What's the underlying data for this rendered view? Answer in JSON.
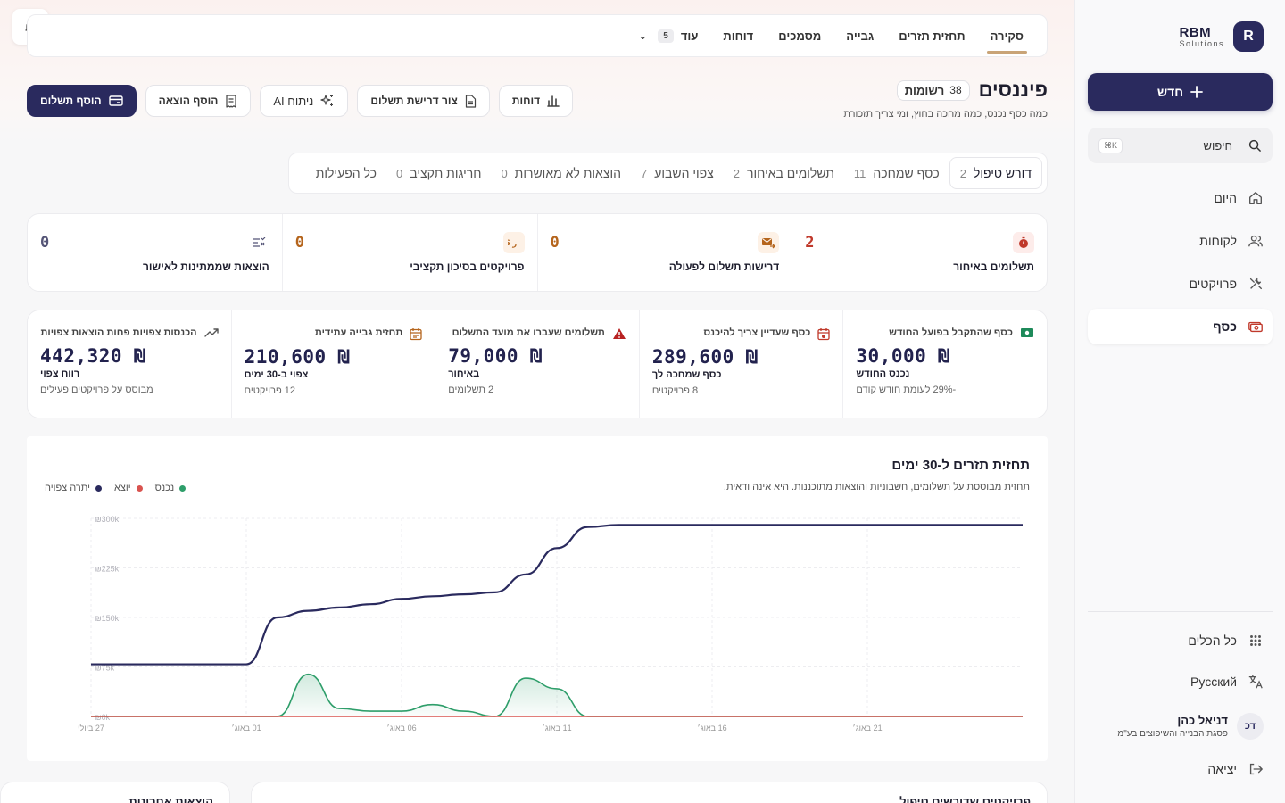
{
  "brand": {
    "logo_letter": "R",
    "name": "RBM",
    "sub": "Solutions"
  },
  "sidebar": {
    "new_label": "חדש",
    "search_label": "חיפוש",
    "search_shortcut": "⌘K",
    "items": [
      {
        "label": "היום",
        "icon": "home-icon"
      },
      {
        "label": "לקוחות",
        "icon": "users-icon"
      },
      {
        "label": "פרויקטים",
        "icon": "tools-icon"
      },
      {
        "label": "כסף",
        "icon": "money-icon"
      }
    ],
    "bottom": {
      "all_tools": "כל הכלים",
      "language": "Русский",
      "user_initials": "דכ",
      "user_name": "דניאל כהן",
      "user_company": "פסגת הבנייה והשיפוצים בע\"מ",
      "logout": "יציאה"
    }
  },
  "top_tabs": {
    "tabs": [
      "סקירה",
      "תחזית תזרים",
      "גבייה",
      "מסמכים",
      "דוחות"
    ],
    "more_label": "עוד",
    "more_count": "5"
  },
  "page": {
    "title": "פיננסים",
    "records_count": "38",
    "records_label": "רשומות",
    "subtitle": "כמה כסף נכנס, כמה מחכה בחוץ, ומי צריך תזכורת"
  },
  "actions": {
    "add_payment": "הוסף תשלום",
    "add_expense": "הוסף הוצאה",
    "ai_analysis": "ניתוח AI",
    "create_payment_request": "צור דרישת תשלום",
    "reports": "דוחות"
  },
  "filters": [
    {
      "label": "דורש טיפול",
      "count": "2"
    },
    {
      "label": "כסף שמחכה",
      "count": "11"
    },
    {
      "label": "תשלומים באיחור",
      "count": "2"
    },
    {
      "label": "צפוי השבוע",
      "count": "7"
    },
    {
      "label": "הוצאות לא מאושרות",
      "count": "0"
    },
    {
      "label": "חריגות תקציב",
      "count": "0"
    },
    {
      "label": "כל הפעילות",
      "count": ""
    }
  ],
  "alerts": [
    {
      "label": "תשלומים באיחור",
      "value": "2",
      "color": "#c0392b",
      "bg": "#fdecea"
    },
    {
      "label": "דרישות תשלום לפעולה",
      "value": "0",
      "color": "#b5651d",
      "bg": "#fdf1e6"
    },
    {
      "label": "פרויקטים בסיכון תקציבי",
      "value": "0",
      "color": "#b5651d",
      "bg": "#fdf1e6"
    },
    {
      "label": "הוצאות שממתינות לאישור",
      "value": "0",
      "color": "#555577",
      "bg": "#ffffff"
    }
  ],
  "kpis": [
    {
      "title": "כסף שהתקבל בפועל החודש",
      "value": "₪ 30,000",
      "caption": "נכנס החודש",
      "note": "-29% לעומת חודש קודם"
    },
    {
      "title": "כסף שעדיין צריך להיכנס",
      "value": "₪ 289,600",
      "caption": "כסף שמחכה לך",
      "note": "8 פרויקטים"
    },
    {
      "title": "תשלומים שעברו את מועד התשלום",
      "value": "₪ 79,000",
      "caption": "באיחור",
      "note": "2 תשלומים"
    },
    {
      "title": "תחזית גבייה עתידית",
      "value": "₪ 210,600",
      "caption": "צפוי ב-30 ימים",
      "note": "12 פרויקטים"
    },
    {
      "title": "הכנסות צפויות פחות הוצאות צפויות",
      "value": "₪ 442,320",
      "caption": "רווח צפוי",
      "note": "מבוסס על פרויקטים פעילים"
    }
  ],
  "chart_panel": {
    "title": "תחזית תזרים ל-30 ימים",
    "subtitle": "תחזית מבוססת על תשלומים, חשבוניות והוצאות מתוכננות. היא אינה ודאית.",
    "legend": [
      {
        "name": "נכנס",
        "color": "#2e9e6a"
      },
      {
        "name": "יוצא",
        "color": "#d9534f"
      },
      {
        "name": "יתרה צפויה",
        "color": "#2a2a5e"
      }
    ]
  },
  "chart_data": {
    "type": "line",
    "title": "תחזית תזרים ל-30 ימים",
    "x_tick_labels": [
      "27 ביולי",
      "01 באוג׳",
      "06 באוג׳",
      "11 באוג׳",
      "16 באוג׳",
      "21 באוג׳"
    ],
    "y_tick_labels": [
      "₪0k",
      "₪75k",
      "₪150k",
      "₪225k",
      "₪300k"
    ],
    "ylim": [
      0,
      300000
    ],
    "x_days": [
      0,
      1,
      2,
      3,
      4,
      5,
      6,
      7,
      8,
      9,
      10,
      11,
      12,
      13,
      14,
      15,
      16,
      17,
      18,
      19,
      20,
      21,
      22,
      23,
      24,
      25,
      26,
      27,
      28,
      29,
      30
    ],
    "series": [
      {
        "name": "יתרה צפויה",
        "color": "#2a2a5e",
        "values": [
          79000,
          79000,
          79000,
          79000,
          79000,
          79000,
          150000,
          160000,
          165000,
          170000,
          178000,
          182000,
          185000,
          188000,
          215000,
          255000,
          287000,
          290000,
          290000,
          290000,
          290000,
          290000,
          290000,
          290000,
          290000,
          290000,
          290000,
          290000,
          290000,
          290000,
          290000
        ]
      },
      {
        "name": "נכנס",
        "color": "#2e9e6a",
        "values": [
          0,
          0,
          0,
          0,
          0,
          0,
          0,
          64000,
          12000,
          8000,
          8000,
          18000,
          8000,
          0,
          58000,
          42000,
          0,
          0,
          0,
          0,
          0,
          0,
          0,
          0,
          0,
          0,
          0,
          0,
          0,
          0,
          0
        ]
      },
      {
        "name": "יוצא",
        "color": "#d9534f",
        "values": [
          0,
          0,
          0,
          0,
          0,
          0,
          0,
          0,
          0,
          0,
          0,
          0,
          0,
          0,
          0,
          0,
          0,
          0,
          0,
          0,
          0,
          0,
          0,
          0,
          0,
          0,
          0,
          0,
          0,
          0,
          0
        ]
      }
    ]
  },
  "bottom_cards": {
    "right_title": "פרויקטים שדורשים טיפול",
    "left_title": "הוצאות אחרונות"
  }
}
